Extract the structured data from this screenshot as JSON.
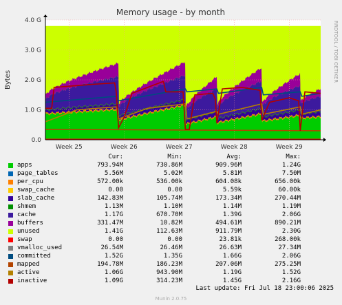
{
  "chart_data": {
    "type": "area",
    "title": "Memory usage - by month",
    "ylabel": "Bytes",
    "side_label": "RRDTOOL / TOBI OETIKER",
    "ylim": [
      0,
      4.0
    ],
    "yticks": [
      {
        "v": 0,
        "label": "0.0"
      },
      {
        "v": 1,
        "label": "1.0 G"
      },
      {
        "v": 2,
        "label": "2.0 G"
      },
      {
        "v": 3,
        "label": "3.0 G"
      },
      {
        "v": 4,
        "label": "4.0 G"
      }
    ],
    "xlim": [
      0,
      35
    ],
    "xticks": [
      {
        "v": 3,
        "label": "Week 25"
      },
      {
        "v": 10,
        "label": "Week 26"
      },
      {
        "v": 17,
        "label": "Week 27"
      },
      {
        "v": 24,
        "label": "Week 28"
      },
      {
        "v": 31,
        "label": "Week 29"
      }
    ],
    "total_level": 3.8,
    "cycles": [
      {
        "start": 0,
        "end": 9.3,
        "apps_a": 0.85,
        "apps_b": 1.0,
        "cache_a": 0.3,
        "cache_b": 0.9,
        "buf_a": 0.15,
        "buf_b": 0.45
      },
      {
        "start": 9.3,
        "end": 17.8,
        "apps_a": 0.65,
        "apps_b": 1.15,
        "cache_a": 0.25,
        "cache_b": 0.8,
        "buf_a": 0.1,
        "buf_b": 0.45
      },
      {
        "start": 17.8,
        "end": 21.8,
        "apps_a": 0.5,
        "apps_b": 0.75,
        "cache_a": 0.25,
        "cache_b": 0.75,
        "buf_a": 0.1,
        "buf_b": 0.4
      },
      {
        "start": 21.8,
        "end": 27.5,
        "apps_a": 0.55,
        "apps_b": 0.85,
        "cache_a": 0.3,
        "cache_b": 0.9,
        "buf_a": 0.1,
        "buf_b": 0.45
      },
      {
        "start": 27.5,
        "end": 32.4,
        "apps_a": 0.6,
        "apps_b": 0.8,
        "cache_a": 0.3,
        "cache_b": 0.8,
        "buf_a": 0.1,
        "buf_b": 0.4
      },
      {
        "start": 32.4,
        "end": 35,
        "apps_a": 0.7,
        "apps_b": 0.75,
        "cache_a": 0.3,
        "cache_b": 0.5,
        "buf_a": 0.1,
        "buf_b": 0.25
      }
    ],
    "lines": {
      "committed": {
        "color": "#004c80",
        "points": [
          [
            0,
            1.25
          ],
          [
            9,
            1.45
          ],
          [
            9.3,
            1.3
          ],
          [
            17.8,
            1.7
          ],
          [
            18,
            1.6
          ],
          [
            21.8,
            1.7
          ],
          [
            22,
            1.55
          ],
          [
            27.5,
            1.75
          ],
          [
            27.7,
            1.5
          ],
          [
            32.4,
            1.6
          ],
          [
            32.6,
            1.45
          ],
          [
            35,
            1.55
          ]
        ]
      },
      "mapped": {
        "color": "#b34400",
        "points": [
          [
            0,
            0.35
          ],
          [
            35,
            0.3
          ]
        ]
      },
      "active": {
        "color": "#b38000",
        "points": [
          [
            0,
            0.6
          ],
          [
            4,
            1.0
          ],
          [
            9,
            1.1
          ],
          [
            9.3,
            0.7
          ],
          [
            13,
            1.05
          ],
          [
            17.8,
            1.2
          ],
          [
            18,
            0.7
          ],
          [
            21.8,
            0.95
          ],
          [
            22,
            0.85
          ],
          [
            27.5,
            1.2
          ],
          [
            27.7,
            0.85
          ],
          [
            32.4,
            1.1
          ],
          [
            32.6,
            0.85
          ],
          [
            35,
            1.0
          ]
        ]
      },
      "inactive": {
        "color": "#b30000",
        "points": [
          [
            0,
            1.05
          ],
          [
            0.8,
            1.05
          ],
          [
            1.1,
            1.75
          ],
          [
            6,
            1.85
          ],
          [
            8.8,
            1.9
          ],
          [
            9,
            1.6
          ],
          [
            9.3,
            0.4
          ],
          [
            10,
            0.75
          ],
          [
            11,
            1.55
          ],
          [
            13,
            1.75
          ],
          [
            15,
            1.95
          ],
          [
            15.3,
            1.6
          ],
          [
            17.5,
            1.6
          ],
          [
            17.8,
            0.35
          ],
          [
            18.3,
            0.35
          ],
          [
            19,
            1.5
          ],
          [
            21.3,
            1.55
          ],
          [
            21.6,
            1.35
          ],
          [
            21.8,
            0.55
          ],
          [
            22.5,
            1.7
          ],
          [
            25,
            1.75
          ],
          [
            27.3,
            1.65
          ],
          [
            27.5,
            0.65
          ],
          [
            28.5,
            1.25
          ],
          [
            31,
            1.4
          ],
          [
            32.2,
            1.3
          ],
          [
            32.4,
            0.3
          ],
          [
            33,
            1.6
          ],
          [
            35,
            1.55
          ]
        ]
      }
    },
    "swap_color": "#ff0000",
    "series": [
      {
        "name": "apps",
        "color": "#00cc00",
        "cur": "793.94M",
        "min": "730.86M",
        "avg": "909.96M",
        "max": "1.24G"
      },
      {
        "name": "page_tables",
        "color": "#0066b3",
        "cur": "5.56M",
        "min": "5.02M",
        "avg": "5.81M",
        "max": "7.50M"
      },
      {
        "name": "per_cpu",
        "color": "#ff8000",
        "cur": "572.00k",
        "min": "536.00k",
        "avg": "604.08k",
        "max": "656.00k"
      },
      {
        "name": "swap_cache",
        "color": "#ffcc00",
        "cur": "0.00",
        "min": "0.00",
        "avg": "5.59k",
        "max": "60.00k"
      },
      {
        "name": "slab_cache",
        "color": "#330099",
        "cur": "142.83M",
        "min": "105.74M",
        "avg": "173.34M",
        "max": "270.44M"
      },
      {
        "name": "shmem",
        "color": "#008f00",
        "cur": "1.13M",
        "min": "1.10M",
        "avg": "1.14M",
        "max": "1.19M"
      },
      {
        "name": "cache",
        "color": "#3c1a9e",
        "cur": "1.17G",
        "min": "670.70M",
        "avg": "1.39G",
        "max": "2.06G"
      },
      {
        "name": "buffers",
        "color": "#990099",
        "cur": "331.47M",
        "min": "10.82M",
        "avg": "494.61M",
        "max": "890.21M"
      },
      {
        "name": "unused",
        "color": "#ccff00",
        "cur": "1.41G",
        "min": "112.63M",
        "avg": "911.79M",
        "max": "2.30G"
      },
      {
        "name": "swap",
        "color": "#ff0000",
        "cur": "0.00",
        "min": "0.00",
        "avg": "23.81k",
        "max": "268.00k"
      },
      {
        "name": "vmalloc_used",
        "color": "#808080",
        "cur": "26.54M",
        "min": "26.46M",
        "avg": "26.63M",
        "max": "27.34M"
      },
      {
        "name": "committed",
        "color": "#004c80",
        "cur": "1.52G",
        "min": "1.35G",
        "avg": "1.66G",
        "max": "2.06G"
      },
      {
        "name": "mapped",
        "color": "#b34400",
        "cur": "194.78M",
        "min": "186.23M",
        "avg": "207.06M",
        "max": "275.25M"
      },
      {
        "name": "active",
        "color": "#b38000",
        "cur": "1.06G",
        "min": "943.90M",
        "avg": "1.19G",
        "max": "1.52G"
      },
      {
        "name": "inactive",
        "color": "#b30000",
        "cur": "1.09G",
        "min": "314.23M",
        "avg": "1.45G",
        "max": "2.16G"
      }
    ],
    "columns": {
      "cur": "Cur:",
      "min": "Min:",
      "avg": "Avg:",
      "max": "Max:"
    },
    "last_update": "Last update: Fri Jul 18 23:00:06 2025",
    "footer": "Munin 2.0.75"
  }
}
